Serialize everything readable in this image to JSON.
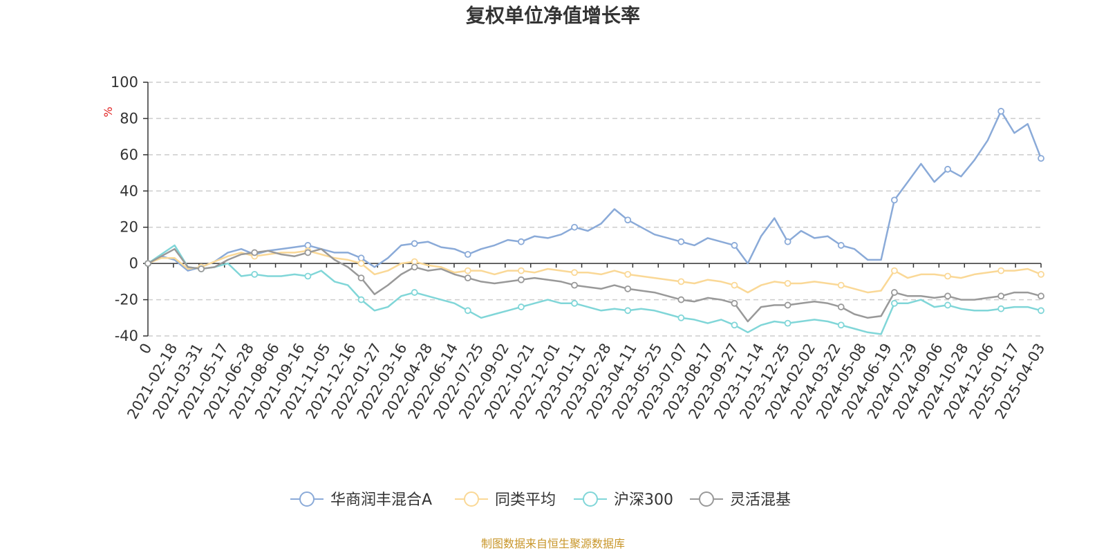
{
  "chart_data": {
    "type": "line",
    "title": "复权单位净值增长率",
    "y_unit": "%",
    "ylim": [
      -40,
      100
    ],
    "y_ticks": [
      -40,
      -20,
      0,
      20,
      40,
      60,
      80,
      100
    ],
    "x_tick_labels": [
      "0",
      "2021-02-18",
      "2021-03-31",
      "2021-05-17",
      "2021-06-28",
      "2021-08-06",
      "2021-09-16",
      "2021-11-05",
      "2021-12-16",
      "2022-01-27",
      "2022-03-16",
      "2022-04-28",
      "2022-06-14",
      "2022-07-25",
      "2022-09-02",
      "2022-10-21",
      "2022-12-01",
      "2023-01-11",
      "2023-02-28",
      "2023-04-11",
      "2023-05-25",
      "2023-07-07",
      "2023-08-17",
      "2023-09-27",
      "2023-11-14",
      "2023-12-25",
      "2024-02-02",
      "2024-03-22",
      "2024-05-08",
      "2024-06-19",
      "2024-07-29",
      "2024-09-06",
      "2024-10-28",
      "2024-12-06",
      "2025-01-17",
      "2025-04-03"
    ],
    "grid": "dashed horizontal",
    "legend_position": "bottom-center",
    "series": [
      {
        "name": "华商润丰混合A",
        "color": "#8aaad8",
        "values": [
          0,
          4,
          2,
          -4,
          -2,
          1,
          6,
          8,
          5,
          7,
          8,
          9,
          10,
          8,
          6,
          6,
          3,
          -2,
          3,
          10,
          11,
          12,
          9,
          8,
          5,
          8,
          10,
          13,
          12,
          15,
          14,
          16,
          20,
          18,
          22,
          30,
          24,
          20,
          16,
          14,
          12,
          10,
          14,
          12,
          10,
          0,
          15,
          25,
          12,
          18,
          14,
          15,
          10,
          8,
          2,
          2,
          35,
          45,
          55,
          45,
          52,
          48,
          57,
          68,
          84,
          72,
          77,
          58
        ]
      },
      {
        "name": "同类平均",
        "color": "#fad896",
        "values": [
          0,
          3,
          3,
          -3,
          -2,
          1,
          4,
          6,
          4,
          5,
          6,
          6,
          7,
          5,
          3,
          2,
          0,
          -6,
          -4,
          0,
          1,
          -1,
          -2,
          -5,
          -4,
          -4,
          -6,
          -4,
          -4,
          -5,
          -3,
          -4,
          -5,
          -5,
          -6,
          -4,
          -6,
          -7,
          -8,
          -9,
          -10,
          -11,
          -9,
          -10,
          -12,
          -16,
          -12,
          -10,
          -11,
          -11,
          -10,
          -11,
          -12,
          -14,
          -16,
          -15,
          -4,
          -8,
          -6,
          -6,
          -7,
          -8,
          -6,
          -5,
          -4,
          -4,
          -3,
          -6
        ]
      },
      {
        "name": "沪深300",
        "color": "#80d6d8",
        "values": [
          0,
          5,
          10,
          -2,
          -3,
          -2,
          0,
          -7,
          -6,
          -7,
          -7,
          -6,
          -7,
          -4,
          -10,
          -12,
          -20,
          -26,
          -24,
          -18,
          -16,
          -18,
          -20,
          -22,
          -26,
          -30,
          -28,
          -26,
          -24,
          -22,
          -20,
          -22,
          -22,
          -24,
          -26,
          -25,
          -26,
          -25,
          -26,
          -28,
          -30,
          -31,
          -33,
          -31,
          -34,
          -38,
          -34,
          -32,
          -33,
          -32,
          -31,
          -32,
          -34,
          -36,
          -38,
          -39,
          -22,
          -22,
          -20,
          -24,
          -23,
          -25,
          -26,
          -26,
          -25,
          -24,
          -24,
          -26
        ]
      },
      {
        "name": "灵活混基",
        "color": "#999999",
        "values": [
          0,
          4,
          8,
          -2,
          -3,
          -2,
          2,
          5,
          6,
          7,
          5,
          4,
          6,
          8,
          2,
          -2,
          -8,
          -17,
          -12,
          -6,
          -2,
          -4,
          -3,
          -6,
          -8,
          -10,
          -11,
          -10,
          -9,
          -8,
          -9,
          -10,
          -12,
          -13,
          -14,
          -12,
          -14,
          -15,
          -16,
          -18,
          -20,
          -21,
          -19,
          -20,
          -22,
          -32,
          -24,
          -23,
          -23,
          -22,
          -21,
          -22,
          -24,
          -28,
          -30,
          -29,
          -16,
          -18,
          -18,
          -19,
          -18,
          -20,
          -20,
          -19,
          -18,
          -16,
          -16,
          -18
        ]
      }
    ]
  },
  "source": "制图数据来自恒生聚源数据库"
}
